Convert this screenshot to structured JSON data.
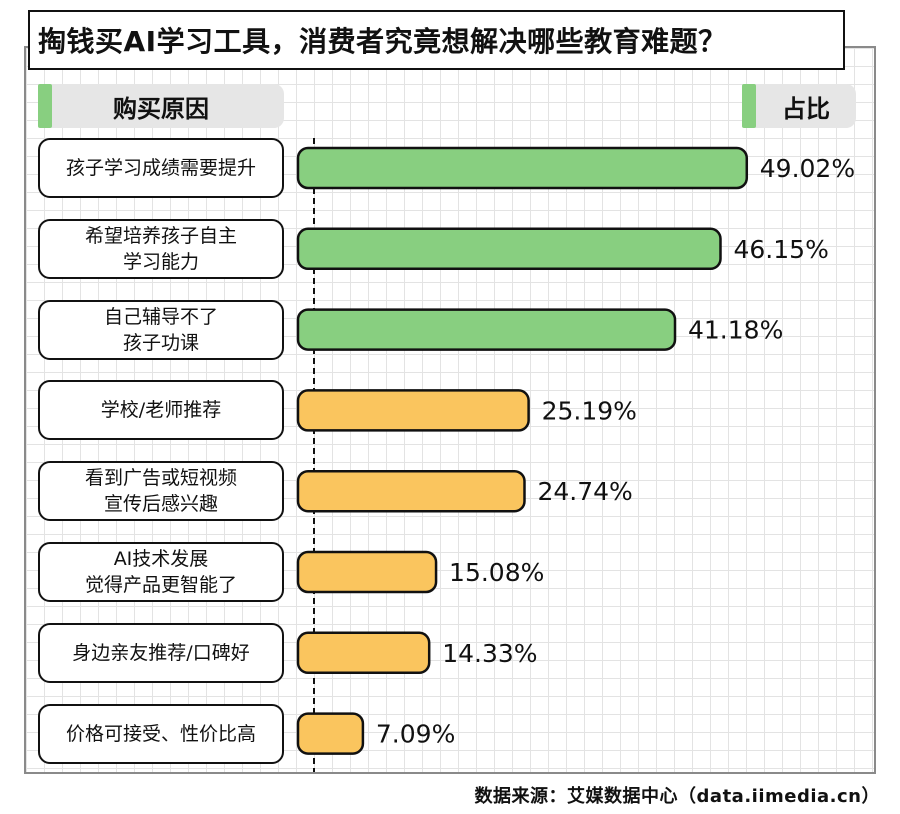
{
  "title": "掏钱买AI学习工具，消费者究竟想解决哪些教育难题？",
  "header": {
    "left_label": "购买原因",
    "right_label": "占比"
  },
  "colors": {
    "green": "#88cf80",
    "orange": "#fac55e",
    "header_accent": "#88cf80",
    "header_bg": "#e6e6e6"
  },
  "source": "数据来源：艾媒数据中心（data.iimedia.cn）",
  "chart_data": {
    "type": "bar",
    "orientation": "horizontal",
    "title": "掏钱买AI学习工具，消费者究竟想解决哪些教育难题？",
    "xlabel": "占比",
    "ylabel": "购买原因",
    "unit": "%",
    "categories": [
      "孩子学习成绩需要提升",
      "希望培养孩子自主\n学习能力",
      "自己辅导不了\n孩子功课",
      "学校/老师推荐",
      "看到广告或短视频\n宣传后感兴趣",
      "AI技术发展\n觉得产品更智能了",
      "身边亲友推荐/口碑好",
      "价格可接受、性价比高"
    ],
    "values": [
      49.02,
      46.15,
      41.18,
      25.19,
      24.74,
      15.08,
      14.33,
      7.09
    ],
    "value_labels": [
      "49.02%",
      "46.15%",
      "41.18%",
      "25.19%",
      "24.74%",
      "15.08%",
      "14.33%",
      "7.09%"
    ],
    "bar_colors": [
      "#88cf80",
      "#88cf80",
      "#88cf80",
      "#fac55e",
      "#fac55e",
      "#fac55e",
      "#fac55e",
      "#fac55e"
    ],
    "grid": true,
    "legend": "none"
  }
}
